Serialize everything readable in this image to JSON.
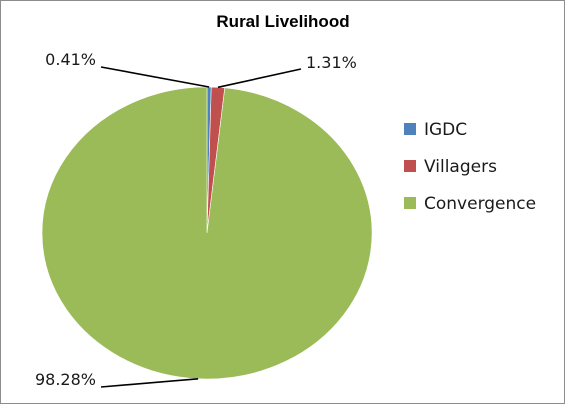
{
  "chart_data": {
    "type": "pie",
    "title": "Rural Livelihood",
    "categories": [
      "IGDC",
      "Villagers",
      "Convergence"
    ],
    "values": [
      0.41,
      1.31,
      98.28
    ],
    "labels": [
      "0.41%",
      "1.31%",
      "98.28%"
    ],
    "colors": [
      "#4f81bd",
      "#c0504d",
      "#9bbb59"
    ],
    "legend_position": "right"
  }
}
